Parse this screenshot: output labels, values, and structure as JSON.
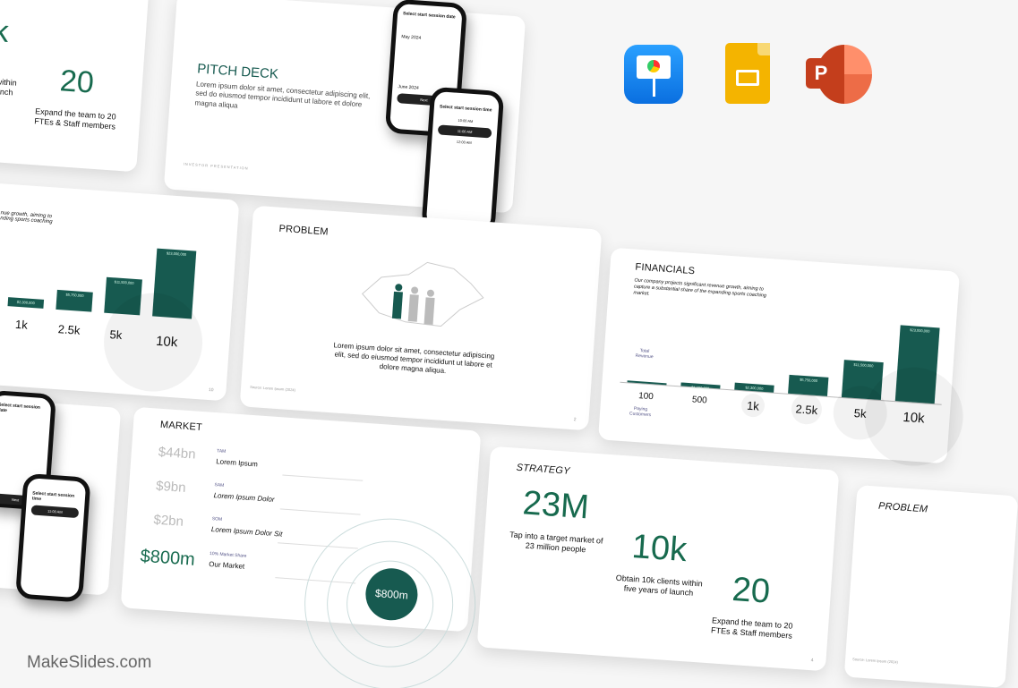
{
  "watermark": "MakeSlides.com",
  "apps": [
    {
      "name": "Keynote",
      "color": "#1d8cf0"
    },
    {
      "name": "Google Slides",
      "color": "#f4b400"
    },
    {
      "name": "PowerPoint",
      "color": "#d24726"
    }
  ],
  "brand_color": "#175a50",
  "strategy": {
    "title": "STRATEGY",
    "stats": [
      {
        "value": "23M",
        "text": "Tap into a target market of 23 million people"
      },
      {
        "value": "10k",
        "text": "Obtain 10k clients within five years of launch"
      },
      {
        "value": "20",
        "text": "Expand the team to 20 FTEs & Staff members"
      }
    ],
    "page": "4"
  },
  "strategy_top": {
    "stat_text_partial": "s within\nlaunch",
    "value": "20",
    "text": "Expand the team to 20 FTEs & Staff members",
    "big_partial": "k"
  },
  "pitch": {
    "title": "PITCH DECK",
    "body": "Lorem ipsum dolor sit amet, consectetur adipiscing elit, sed do eiusmod tempor incididunt ut labore et dolore magna aliqua",
    "footer": "INVESTOR PRESENTATION"
  },
  "phone": {
    "date_title": "Select start session date",
    "month1": "May 2024",
    "month2": "June 2024",
    "button": "Next",
    "time_title": "Select start session time",
    "times": [
      "10:00 AM",
      "11:00 AM",
      "12:00 AM"
    ]
  },
  "financials": {
    "title": "FINANCIALS",
    "body": "Our company projects significant revenue growth, aiming to capture a substantial share of the expanding sports coaching market.",
    "revenue_label": "Total Revenue",
    "customers_label": "Paying Customers",
    "chart_data": {
      "type": "bar",
      "categories": [
        "100",
        "500",
        "1k",
        "2.5k",
        "5k",
        "10k"
      ],
      "values": [
        230000,
        1150000,
        2300000,
        5750000,
        11500000,
        23000000
      ],
      "value_labels": [
        "",
        "$1,150,000",
        "$2,300,000",
        "$5,750,000",
        "$11,500,000",
        "$23,000,000"
      ]
    }
  },
  "financials_left": {
    "body_partial": "nue growth, aiming to\nnding sports coaching",
    "page": "10"
  },
  "problem": {
    "title": "PROBLEM",
    "body": "Lorem ipsum dolor sit amet, consectetur adipiscing elit, sed do eiusmod tempor incididunt ut labore et dolore magna aliqua.",
    "source": "Source: Lorem Ipsum (2024)",
    "page": "2"
  },
  "market": {
    "title": "MARKET",
    "rows": [
      {
        "value": "$44bn",
        "tag": "TAM",
        "label": "Lorem Ipsum"
      },
      {
        "value": "$9bn",
        "tag": "SAM",
        "label": "Lorem Ipsum Dolor"
      },
      {
        "value": "$2bn",
        "tag": "SOM",
        "label": "Lorem Ipsum Dolor Sit"
      },
      {
        "value": "$800m",
        "tag": "10% Market Share",
        "label": "Our Market"
      }
    ],
    "circle_value": "$800m"
  },
  "problem_right": {
    "title": "PROBLEM",
    "source": "Source: Lorem Ipsum (2024)"
  }
}
